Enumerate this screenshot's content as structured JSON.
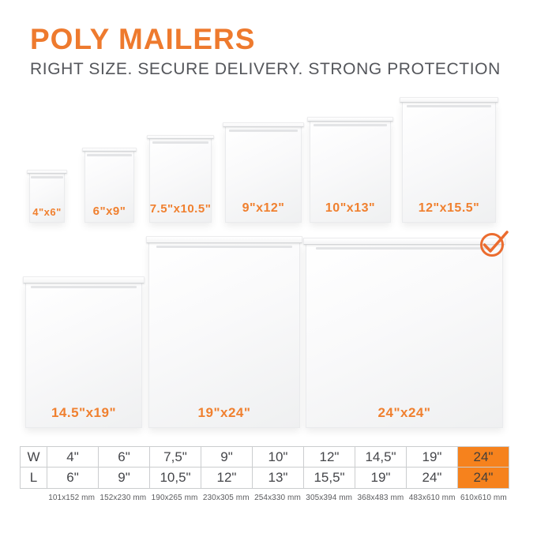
{
  "page": {
    "title": "POLY MAILERS",
    "subtitle": "RIGHT SIZE. SECURE DELIVERY. STRONG PROTECTION"
  },
  "colors": {
    "accent_orange": "#EE7A2E",
    "label_orange": "#F0802F",
    "highlight_orange": "#F6821D",
    "heading_gray": "#54565B",
    "table_text_gray": "#45464A",
    "table_border_gray": "#CBCDCF"
  },
  "icons": {
    "selected_check": "check-circle-icon"
  },
  "mailers": [
    {
      "label": "4\"x6\""
    },
    {
      "label": "6\"x9\""
    },
    {
      "label": "7.5\"x10.5\""
    },
    {
      "label": "9\"x12\""
    },
    {
      "label": "10\"x13\""
    },
    {
      "label": "12\"x15.5\""
    },
    {
      "label": "14.5\"x19\""
    },
    {
      "label": "19\"x24\""
    },
    {
      "label": "24\"x24\""
    }
  ],
  "selected_mailer": "24\"x24\"",
  "size_table": {
    "width_header": "W",
    "length_header": "L",
    "columns": [
      {
        "w": "4\"",
        "l": "6\"",
        "mm": "101x152 mm",
        "highlighted": false
      },
      {
        "w": "6\"",
        "l": "9\"",
        "mm": "152x230 mm",
        "highlighted": false
      },
      {
        "w": "7,5\"",
        "l": "10,5\"",
        "mm": "190x265 mm",
        "highlighted": false
      },
      {
        "w": "9\"",
        "l": "12\"",
        "mm": "230x305 mm",
        "highlighted": false
      },
      {
        "w": "10\"",
        "l": "13\"",
        "mm": "254x330 mm",
        "highlighted": false
      },
      {
        "w": "12\"",
        "l": "15,5\"",
        "mm": "305x394 mm",
        "highlighted": false
      },
      {
        "w": "14,5\"",
        "l": "19\"",
        "mm": "368x483 mm",
        "highlighted": false
      },
      {
        "w": "19\"",
        "l": "24\"",
        "mm": "483x610 mm",
        "highlighted": false
      },
      {
        "w": "24\"",
        "l": "24\"",
        "mm": "610x610 mm",
        "highlighted": true
      }
    ]
  }
}
